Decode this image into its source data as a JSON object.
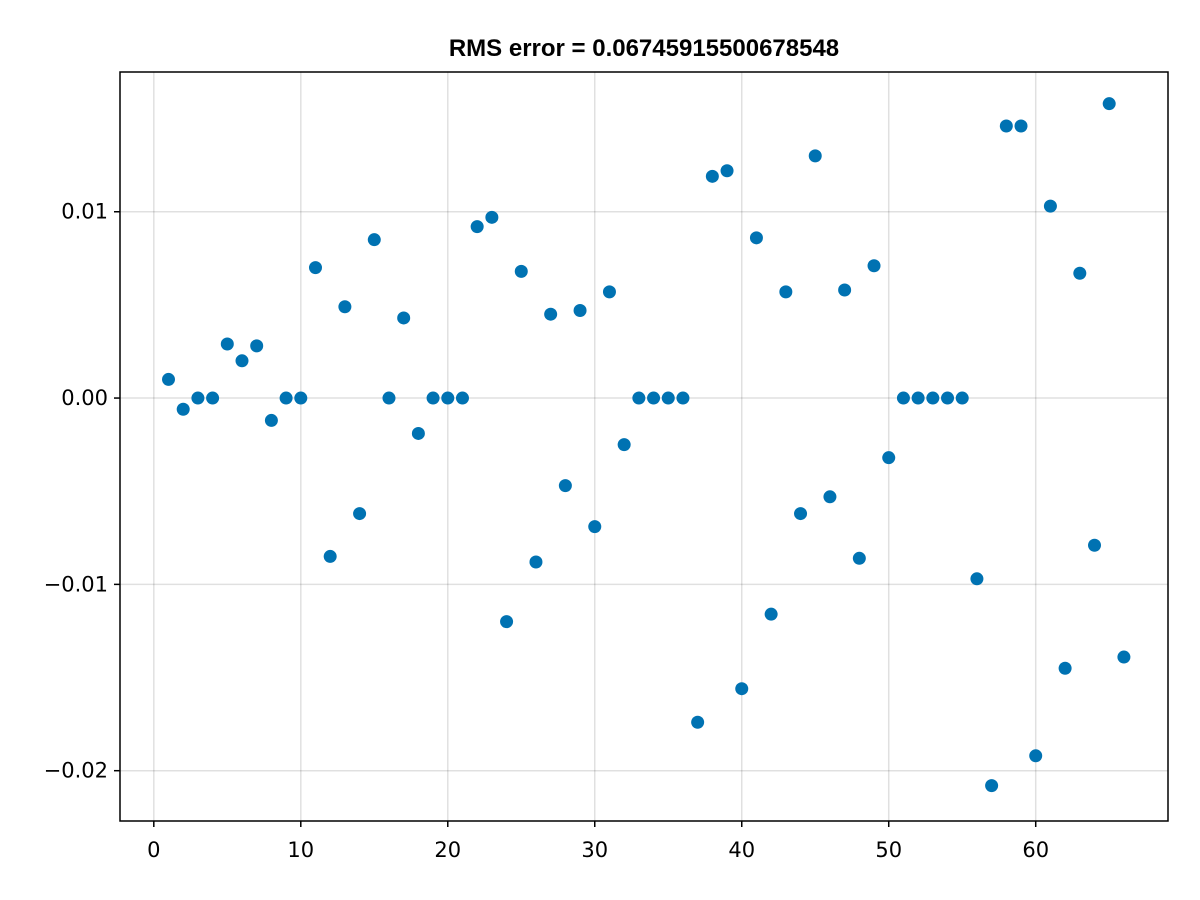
{
  "chart_data": {
    "type": "scatter",
    "title": "RMS error = 0.06745915500678548",
    "xlabel": "",
    "ylabel": "",
    "xlim": [
      -2.3,
      69.0
    ],
    "ylim": [
      -0.0227,
      0.0175
    ],
    "x_ticks": [
      0,
      10,
      20,
      30,
      40,
      50,
      60
    ],
    "x_tick_labels": [
      "0",
      "10",
      "20",
      "30",
      "40",
      "50",
      "60"
    ],
    "y_ticks": [
      -0.02,
      -0.01,
      0.0,
      0.01
    ],
    "y_tick_labels": [
      "−0.02",
      "−0.01",
      "0.00",
      "0.01"
    ],
    "grid": true,
    "marker_color": "#0072b2",
    "series": [
      {
        "x": [
          1,
          2,
          3,
          4,
          5,
          6,
          7,
          8,
          9,
          10,
          11,
          12,
          13,
          14,
          15,
          16,
          17,
          18,
          19,
          20,
          21,
          22,
          23,
          24,
          25,
          26,
          27,
          28,
          29,
          30,
          31,
          32,
          33,
          34,
          35,
          36,
          37,
          38,
          39,
          40,
          41,
          42,
          43,
          44,
          45,
          46,
          47,
          48,
          49,
          50,
          51,
          52,
          53,
          54,
          55,
          56,
          57,
          58,
          59,
          60,
          61,
          62,
          63,
          64,
          65,
          66
        ],
        "y": [
          0.001,
          -0.0006,
          0.0,
          0.0,
          0.0029,
          0.002,
          0.0028,
          -0.0012,
          0.0,
          0.0,
          0.007,
          -0.0085,
          0.0049,
          -0.0062,
          0.0085,
          0.0,
          0.0043,
          -0.0019,
          0.0,
          0.0,
          0.0,
          0.0092,
          0.0097,
          -0.012,
          0.0068,
          -0.0088,
          0.0045,
          -0.0047,
          0.0047,
          -0.0069,
          0.0057,
          -0.0025,
          0.0,
          0.0,
          0.0,
          0.0,
          -0.0174,
          0.0119,
          0.0122,
          -0.0156,
          0.0086,
          -0.0116,
          0.0057,
          -0.0062,
          0.013,
          -0.0053,
          0.0058,
          -0.0086,
          0.0071,
          -0.0032,
          0.0,
          0.0,
          0.0,
          0.0,
          0.0,
          -0.0097,
          -0.0208,
          0.0146,
          0.0146,
          -0.0192,
          0.0103,
          -0.0145,
          0.0067,
          -0.0079,
          0.0158,
          -0.0139
        ]
      }
    ]
  }
}
